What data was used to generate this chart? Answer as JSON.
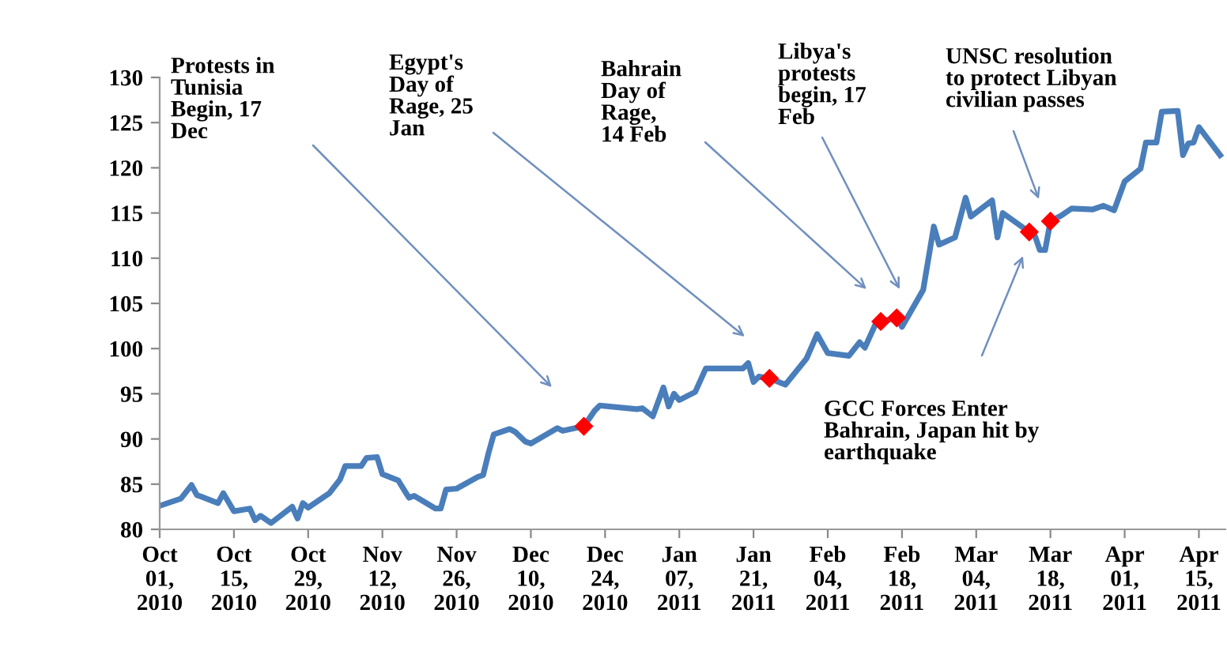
{
  "chart_data": {
    "type": "line",
    "series": [
      {
        "color": "#4a7ebb",
        "marker": "none",
        "x": [
          "2010-10-01",
          "2010-10-05",
          "2010-10-07",
          "2010-10-08",
          "2010-10-12",
          "2010-10-13",
          "2010-10-15",
          "2010-10-18",
          "2010-10-19",
          "2010-10-20",
          "2010-10-22",
          "2010-10-26",
          "2010-10-27",
          "2010-10-28",
          "2010-10-29",
          "2010-11-02",
          "2010-11-04",
          "2010-11-05",
          "2010-11-08",
          "2010-11-09",
          "2010-11-11",
          "2010-11-12",
          "2010-11-15",
          "2010-11-17",
          "2010-11-18",
          "2010-11-22",
          "2010-11-23",
          "2010-11-24",
          "2010-11-26",
          "2010-11-30",
          "2010-12-01",
          "2010-12-02",
          "2010-12-03",
          "2010-12-06",
          "2010-12-07",
          "2010-12-09",
          "2010-12-10",
          "2010-12-15",
          "2010-12-16",
          "2010-12-20",
          "2010-12-22",
          "2010-12-23",
          "2010-12-30",
          "2010-12-31",
          "2011-01-02",
          "2011-01-04",
          "2011-01-05",
          "2011-01-06",
          "2011-01-07",
          "2011-01-10",
          "2011-01-12",
          "2011-01-19",
          "2011-01-20",
          "2011-01-21",
          "2011-01-22",
          "2011-01-24",
          "2011-01-27",
          "2011-01-31",
          "2011-02-02",
          "2011-02-04",
          "2011-02-08",
          "2011-02-10",
          "2011-02-11",
          "2011-02-13",
          "2011-02-14",
          "2011-02-17",
          "2011-02-18",
          "2011-02-22",
          "2011-02-24",
          "2011-02-25",
          "2011-02-28",
          "2011-03-02",
          "2011-03-03",
          "2011-03-07",
          "2011-03-08",
          "2011-03-09",
          "2011-03-14",
          "2011-03-15",
          "2011-03-16",
          "2011-03-17",
          "2011-03-18",
          "2011-03-20",
          "2011-03-22",
          "2011-03-26",
          "2011-03-28",
          "2011-03-30",
          "2011-04-01",
          "2011-04-04",
          "2011-04-05",
          "2011-04-07",
          "2011-04-08",
          "2011-04-11",
          "2011-04-12",
          "2011-04-13",
          "2011-04-14",
          "2011-04-15",
          "2011-04-19"
        ],
        "values": [
          82.6,
          83.4,
          84.9,
          83.8,
          82.9,
          84.0,
          82.0,
          82.3,
          81.0,
          81.5,
          80.7,
          82.5,
          81.2,
          82.9,
          82.4,
          84.0,
          85.5,
          87.0,
          87.0,
          87.9,
          88.0,
          86.1,
          85.4,
          83.5,
          83.7,
          82.3,
          82.3,
          84.4,
          84.5,
          85.8,
          86.0,
          88.4,
          90.5,
          91.1,
          90.8,
          89.7,
          89.5,
          91.2,
          90.9,
          91.4,
          93.1,
          93.7,
          93.3,
          93.4,
          92.5,
          95.7,
          93.6,
          95.0,
          94.3,
          95.2,
          97.8,
          97.8,
          98.4,
          96.3,
          96.9,
          96.7,
          96.0,
          98.9,
          101.6,
          99.5,
          99.2,
          100.7,
          100.1,
          102.7,
          103.0,
          103.4,
          102.4,
          106.5,
          113.5,
          111.5,
          112.3,
          116.7,
          114.6,
          116.4,
          112.3,
          115.0,
          112.9,
          112.6,
          110.9,
          110.9,
          114.1,
          114.7,
          115.5,
          115.4,
          115.8,
          115.3,
          118.5,
          119.9,
          122.8,
          122.8,
          126.2,
          126.3,
          121.4,
          122.7,
          122.8,
          124.5,
          121.4
        ]
      },
      {
        "type": "scatter",
        "color": "#ff0000",
        "marker": "diamond",
        "x": [
          "2010-12-20",
          "2011-01-24",
          "2011-02-14",
          "2011-02-17",
          "2011-03-14",
          "2011-03-18"
        ],
        "values": [
          91.4,
          96.7,
          103.0,
          103.4,
          112.9,
          114.1
        ]
      }
    ],
    "xlim": [
      "2010-10-01",
      "2011-04-20"
    ],
    "xticks": [
      {
        "value": "2010-10-01",
        "label": "Oct\n01,\n2010"
      },
      {
        "value": "2010-10-15",
        "label": "Oct\n15,\n2010"
      },
      {
        "value": "2010-10-29",
        "label": "Oct\n29,\n2010"
      },
      {
        "value": "2010-11-12",
        "label": "Nov\n12,\n2010"
      },
      {
        "value": "2010-11-26",
        "label": "Nov\n26,\n2010"
      },
      {
        "value": "2010-12-10",
        "label": "Dec\n10,\n2010"
      },
      {
        "value": "2010-12-24",
        "label": "Dec\n24,\n2010"
      },
      {
        "value": "2011-01-07",
        "label": "Jan\n07,\n2011"
      },
      {
        "value": "2011-01-21",
        "label": "Jan\n21,\n2011"
      },
      {
        "value": "2011-02-04",
        "label": "Feb\n04,\n2011"
      },
      {
        "value": "2011-02-18",
        "label": "Feb\n18,\n2011"
      },
      {
        "value": "2011-03-04",
        "label": "Mar\n04,\n2011"
      },
      {
        "value": "2011-03-18",
        "label": "Mar\n18,\n2011"
      },
      {
        "value": "2011-04-01",
        "label": "Apr\n01,\n2011"
      },
      {
        "value": "2011-04-15",
        "label": "Apr\n15,\n2011"
      }
    ],
    "ylim": [
      80,
      130
    ],
    "yticks": [
      80,
      85,
      90,
      95,
      100,
      105,
      110,
      115,
      120,
      125,
      130
    ],
    "grid": false,
    "legend": false,
    "annotations": [
      "Protests in\nTunisia\nBegin, 17\nDec",
      "Egypt's\nDay of\nRage, 25\nJan",
      "Bahrain\nDay of\nRage,\n14 Feb",
      "Libya's\nprotests\nbegin, 17\nFeb",
      "UNSC resolution\nto protect Libyan\ncivilian passes",
      "GCC Forces Enter\nBahrain, Japan hit by\nearthquake"
    ]
  }
}
